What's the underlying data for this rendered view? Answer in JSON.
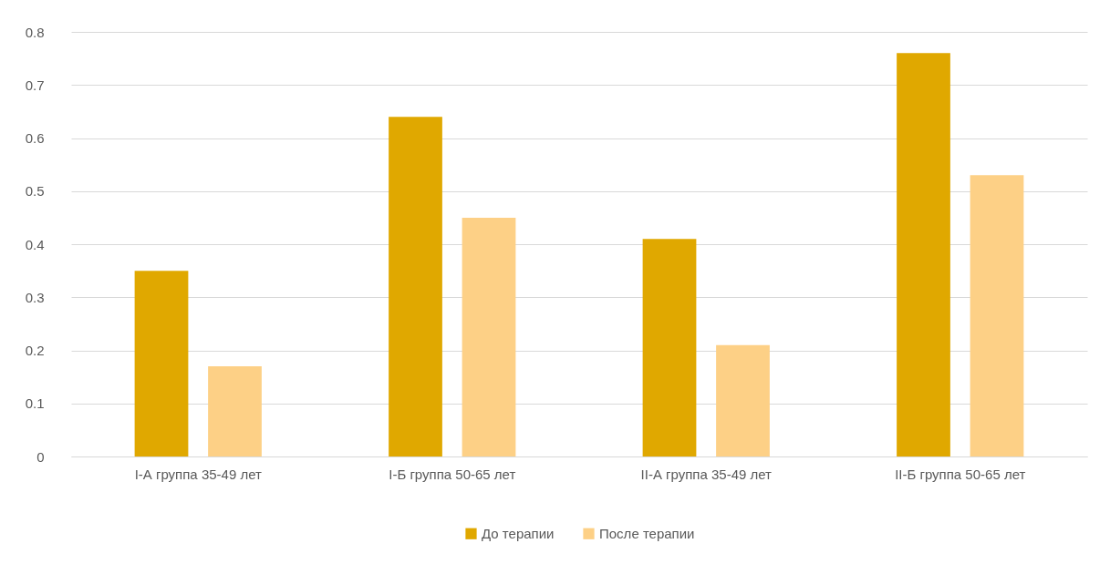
{
  "chart_data": {
    "type": "bar",
    "categories": [
      "I-А группа 35-49 лет",
      "I-Б группа 50-65 лет",
      "II-А группа 35-49 лет",
      "II-Б группа 50-65 лет"
    ],
    "series": [
      {
        "name": "До терапии",
        "color": "#e0a800",
        "values": [
          0.35,
          0.64,
          0.41,
          0.76
        ]
      },
      {
        "name": "После терапии",
        "color": "#fdd086",
        "values": [
          0.17,
          0.45,
          0.21,
          0.53
        ]
      }
    ],
    "ylim": [
      0,
      0.8
    ],
    "yticks": [
      0,
      0.1,
      0.2,
      0.3,
      0.4,
      0.5,
      0.6,
      0.7,
      0.8
    ],
    "grid": "y",
    "legend": "bottom"
  }
}
